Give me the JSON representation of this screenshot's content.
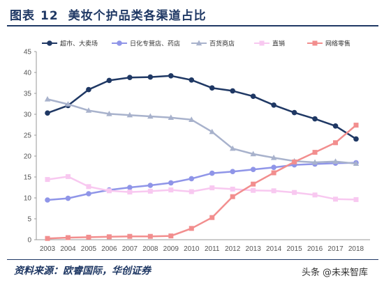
{
  "header": {
    "title_prefix": "图表",
    "title_number": "12",
    "title_text": "美妆个护品类各渠道占比"
  },
  "footer": {
    "source": "资料来源：欧睿国际，华创证券",
    "watermark_brand": "头条",
    "watermark_handle": "@未来智库"
  },
  "chart_data": {
    "type": "line",
    "title": "",
    "xlabel": "",
    "ylabel": "",
    "x": [
      "2003",
      "2004",
      "2005",
      "2006",
      "2007",
      "2008",
      "2009",
      "2010",
      "2011",
      "2012",
      "2013",
      "2014",
      "2015",
      "2016",
      "2017",
      "2018"
    ],
    "ylim": [
      0,
      45
    ],
    "yticks": [
      0,
      5,
      10,
      15,
      20,
      25,
      30,
      35,
      40,
      45
    ],
    "grid": false,
    "legend_position": "top",
    "series": [
      {
        "name": "超市、大卖场",
        "color": "#1f3864",
        "marker": "circle",
        "values": [
          30.3,
          32.1,
          35.9,
          38.1,
          38.8,
          38.9,
          39.2,
          38.2,
          36.3,
          35.6,
          34.3,
          32.2,
          30.4,
          28.9,
          27.2,
          24.1
        ]
      },
      {
        "name": "日化专营店、药店",
        "color": "#8f95e8",
        "marker": "circle",
        "values": [
          9.5,
          9.9,
          11.0,
          11.9,
          12.5,
          13.0,
          13.6,
          14.6,
          15.9,
          16.3,
          16.8,
          17.3,
          17.9,
          18.1,
          18.3,
          18.4
        ]
      },
      {
        "name": "百货商店",
        "color": "#a8b2cc",
        "marker": "triangle",
        "values": [
          33.6,
          32.4,
          30.9,
          30.1,
          29.8,
          29.5,
          29.2,
          28.7,
          25.8,
          21.8,
          20.5,
          19.6,
          18.8,
          18.5,
          18.7,
          18.2
        ]
      },
      {
        "name": "直销",
        "color": "#f8c8f0",
        "marker": "square",
        "values": [
          14.4,
          15.1,
          12.7,
          11.7,
          11.4,
          11.6,
          11.9,
          11.5,
          12.4,
          12.1,
          11.8,
          11.7,
          11.3,
          10.7,
          9.7,
          9.6
        ]
      },
      {
        "name": "网络零售",
        "color": "#f28e8e",
        "marker": "square",
        "values": [
          0.3,
          0.5,
          0.6,
          0.7,
          0.8,
          0.8,
          0.9,
          2.7,
          5.3,
          10.3,
          13.3,
          16.0,
          18.6,
          20.9,
          23.2,
          27.4
        ]
      }
    ]
  }
}
